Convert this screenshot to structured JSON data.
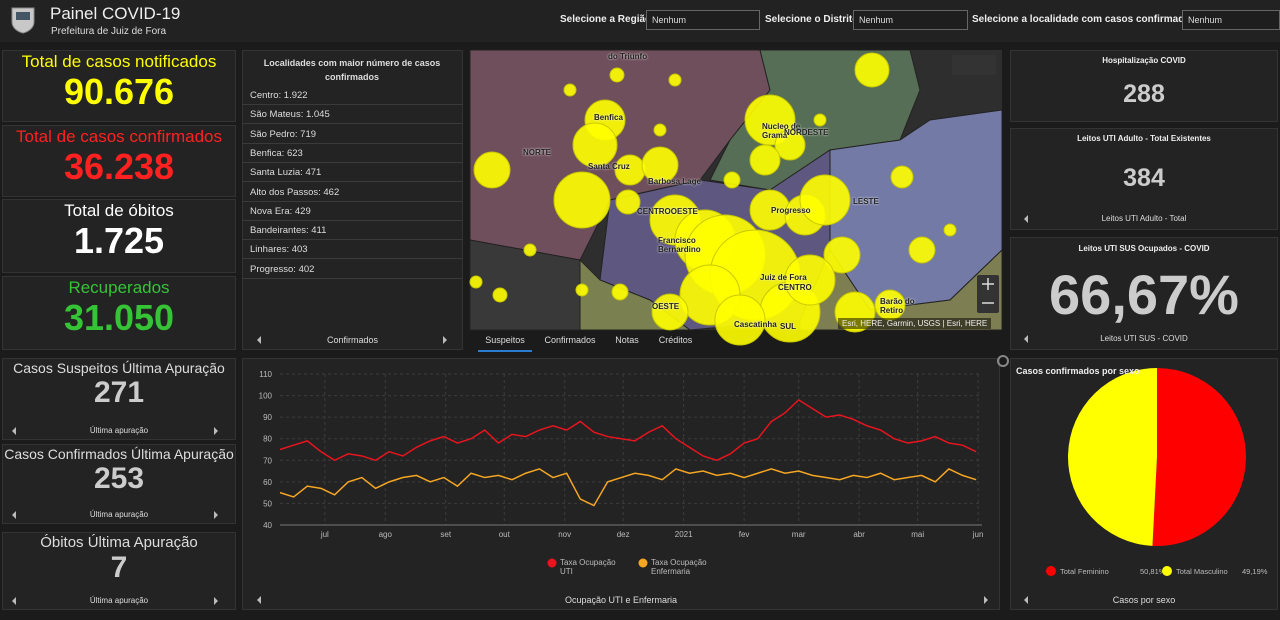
{
  "header": {
    "title": "Painel COVID-19",
    "subtitle": "Prefeitura de Juiz de Fora"
  },
  "filters": [
    {
      "label": "Selecione a Região",
      "value": "Nenhum"
    },
    {
      "label": "Selecione o Distrito",
      "value": "Nenhum"
    },
    {
      "label": "Selecione a localidade com casos confirmados",
      "value": "Nenhum"
    }
  ],
  "indicators": [
    {
      "label": "Total de casos notificados",
      "value": "90.676"
    },
    {
      "label": "Total de casos confirmados",
      "value": "36.238"
    },
    {
      "label": "Total de óbitos",
      "value": "1.725"
    },
    {
      "label": "Recuperados",
      "value": "31.050"
    },
    {
      "label": "Casos Suspeitos Última Apuração",
      "value": "271",
      "footer": "Última apuração"
    },
    {
      "label": "Casos Confirmados Última Apuração",
      "value": "253",
      "footer": "Última apuração"
    },
    {
      "label": "Óbitos Última Apuração",
      "value": "7",
      "footer": "Última apuração"
    }
  ],
  "ranking": {
    "title": "Localidades com maior número de casos confirmados",
    "items": [
      "Centro: 1.922",
      "São Mateus: 1.045",
      "São Pedro: 719",
      "Benfica: 623",
      "Santa Luzia: 471",
      "Alto dos Passos: 462",
      "Nova Era: 429",
      "Bandeirantes: 411",
      "Linhares: 403",
      "Progresso: 402"
    ],
    "footer": "Confirmados"
  },
  "map": {
    "labels": [
      "do Triunfo",
      "Benfica",
      "NORTE",
      "Santa Cruz",
      "Barbosa Lage",
      "Nucleo de Gramá",
      "NORDESTE",
      "CENTROOESTE",
      "Progresso",
      "LESTE",
      "Francisco Bernardino",
      "Juiz de Fora",
      "CENTRO",
      "OESTE",
      "Barão do Retiro",
      "Cascatinha",
      "SUL"
    ],
    "attribution": "Esri, HERE, Garmin, USGS | Esri, HERE"
  },
  "tabs": [
    "Suspeitos",
    "Confirmados",
    "Notas",
    "Créditos"
  ],
  "right_indicators": [
    {
      "label": "Hospitalização COVID",
      "value": "288"
    },
    {
      "label": "Leitos UTI Adulto - Total Existentes",
      "value": "384",
      "footer": "Leitos UTI Adulto - Total"
    },
    {
      "label": "Leitos UTI SUS Ocupados - COVID",
      "value": "66,67%",
      "footer": "Leitos UTI SUS - COVID"
    }
  ],
  "line_chart": {
    "type": "line",
    "footer": "Ocupação UTI e Enfermaria",
    "x": [
      0,
      7,
      14,
      21,
      28,
      35,
      42,
      49,
      56,
      63,
      70,
      77,
      84,
      91,
      98,
      105,
      112,
      119,
      126,
      133,
      140,
      147,
      154,
      161,
      168,
      175,
      182,
      189,
      196,
      203,
      210,
      217,
      224,
      231,
      238,
      245,
      252,
      259,
      266,
      273,
      280,
      287,
      294,
      301,
      308,
      315,
      322,
      329,
      336,
      343,
      350,
      357
    ],
    "xlim": [
      0,
      360
    ],
    "xticks": [
      {
        "value": 23,
        "label": "jul"
      },
      {
        "value": 54,
        "label": "ago"
      },
      {
        "value": 85,
        "label": "set"
      },
      {
        "value": 115,
        "label": "out"
      },
      {
        "value": 146,
        "label": "nov"
      },
      {
        "value": 176,
        "label": "dez"
      },
      {
        "value": 207,
        "label": "2021"
      },
      {
        "value": 238,
        "label": "fev"
      },
      {
        "value": 266,
        "label": "mar"
      },
      {
        "value": 297,
        "label": "abr"
      },
      {
        "value": 327,
        "label": "mai"
      },
      {
        "value": 358,
        "label": "jun"
      }
    ],
    "ylim": [
      40,
      110
    ],
    "yticks": [
      40,
      50,
      60,
      70,
      80,
      90,
      100,
      110
    ],
    "grid": true,
    "series": [
      {
        "name": "Taxa Ocupação UTI",
        "color": "#e8141e",
        "values": [
          75,
          77,
          79,
          74,
          70,
          73,
          72,
          70,
          74,
          72,
          76,
          79,
          81,
          78,
          80,
          84,
          78,
          82,
          81,
          84,
          86,
          84,
          88,
          83,
          81,
          80,
          79,
          83,
          86,
          80,
          76,
          72,
          70,
          73,
          78,
          80,
          88,
          92,
          98,
          94,
          90,
          91,
          89,
          86,
          84,
          80,
          78,
          79,
          81,
          78,
          77,
          74
        ]
      },
      {
        "name": "Taxa Ocupação Enfermaria",
        "color": "#f5a623",
        "values": [
          55,
          53,
          58,
          57,
          54,
          60,
          62,
          57,
          60,
          62,
          63,
          60,
          62,
          58,
          64,
          62,
          63,
          61,
          64,
          66,
          62,
          64,
          52,
          49,
          60,
          62,
          64,
          63,
          61,
          66,
          64,
          65,
          63,
          64,
          62,
          64,
          66,
          64,
          65,
          63,
          62,
          61,
          63,
          62,
          64,
          61,
          62,
          63,
          60,
          66,
          63,
          61
        ]
      }
    ]
  },
  "pie_chart": {
    "type": "pie",
    "title": "Casos confirmados por sexo",
    "categories": [
      "Total Feminino",
      "Total Masculino"
    ],
    "values": [
      50.81,
      49.19
    ],
    "value_labels": [
      "50,81%",
      "49,19%"
    ],
    "colors": [
      "#ff0000",
      "#ffff00"
    ],
    "footer": "Casos por sexo"
  }
}
